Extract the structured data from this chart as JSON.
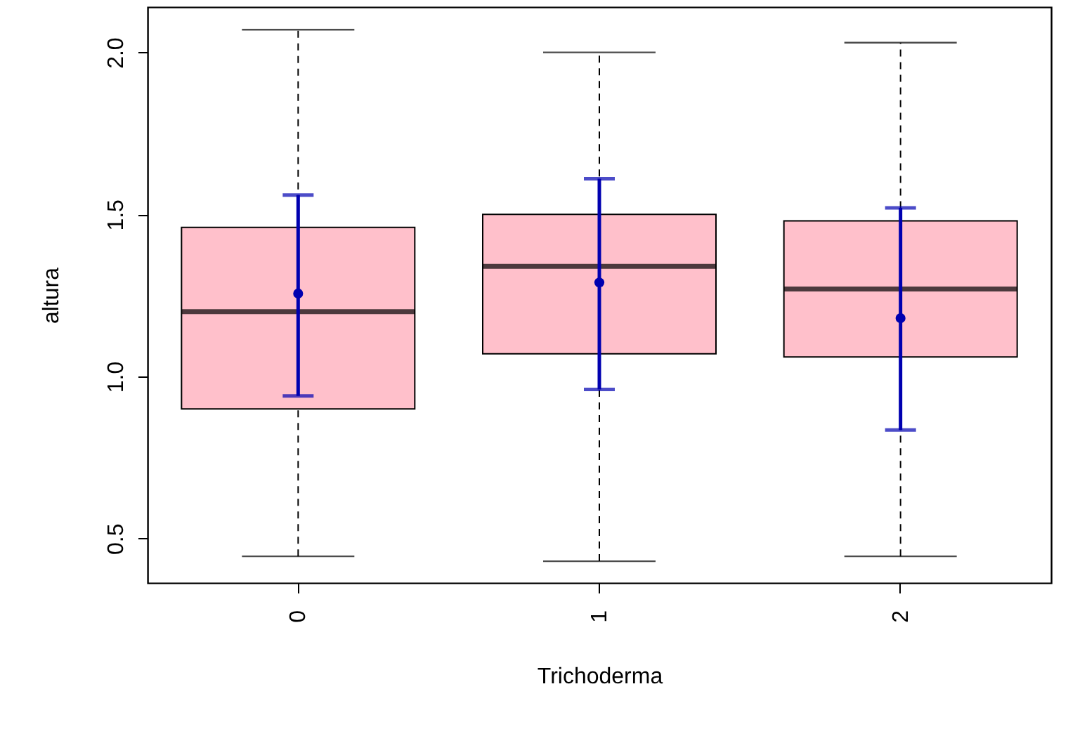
{
  "chart_data": {
    "type": "box",
    "xlabel": "Trichoderma",
    "ylabel": "altura",
    "categories": [
      "0",
      "1",
      "2"
    ],
    "ylim": [
      0.363,
      2.14
    ],
    "yticks": [
      {
        "value": 0.5,
        "label": "0.5"
      },
      {
        "value": 1,
        "label": "1.0"
      },
      {
        "value": 1.5,
        "label": "1.5"
      },
      {
        "value": 2,
        "label": "2.0"
      }
    ],
    "color": "#ffc0cb",
    "line_style": "dashed",
    "boxes": [
      {
        "low": 0.445,
        "q1": 0.9,
        "median": 1.2,
        "q3": 1.46,
        "high": 2.07
      },
      {
        "low": 0.43,
        "q1": 1.07,
        "median": 1.34,
        "q3": 1.5,
        "high": 2.0
      },
      {
        "low": 0.445,
        "q1": 1.06,
        "median": 1.27,
        "q3": 1.48,
        "high": 2.03
      }
    ],
    "series": [
      {
        "type": "scatter",
        "color": "#0000b0",
        "marker": "circle",
        "x": [
          "0",
          "1",
          "2"
        ],
        "values": [
          1.256,
          1.29,
          1.18
        ],
        "errors": [
          [
            0.94,
            1.56
          ],
          [
            0.96,
            1.61
          ],
          [
            0.835,
            1.52
          ]
        ]
      }
    ]
  }
}
